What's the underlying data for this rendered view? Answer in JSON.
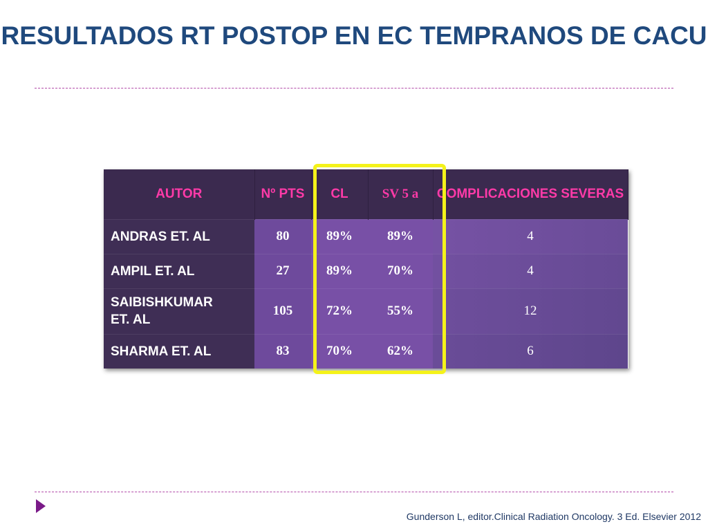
{
  "slide": {
    "title": "RESULTADOS RT POSTOP EN EC TEMPRANOS DE CACU",
    "citation": "Gunderson L, editor.Clinical Radiation Oncology. 3 Ed. Elsevier 2012"
  },
  "table": {
    "headers": {
      "autor": "AUTOR",
      "n_pts": "Nº PTS",
      "cl": "CL",
      "sv": "SV 5 a",
      "complicaciones": "COMPLICACIONES SEVERAS"
    },
    "rows": [
      {
        "autor": "ANDRAS ET. AL",
        "n_pts": "80",
        "cl": "89%",
        "sv": "89%",
        "complicaciones": "4"
      },
      {
        "autor": "AMPIL ET. AL",
        "n_pts": "27",
        "cl": "89%",
        "sv": "70%",
        "complicaciones": "4"
      },
      {
        "autor": "SAIBISHKUMAR ET. AL",
        "n_pts": "105",
        "cl": "72%",
        "sv": "55%",
        "complicaciones": "12"
      },
      {
        "autor": "SHARMA ET. AL",
        "n_pts": "83",
        "cl": "70%",
        "sv": "62%",
        "complicaciones": "6"
      }
    ]
  },
  "colors": {
    "title": "#1f497d",
    "header_text": "#ff3aa8",
    "highlight": "#f4f21a",
    "header_bg": "#3b2a4f",
    "body_bg": "#7850a6"
  },
  "icons": {
    "bullet": "right-triangle-icon"
  }
}
